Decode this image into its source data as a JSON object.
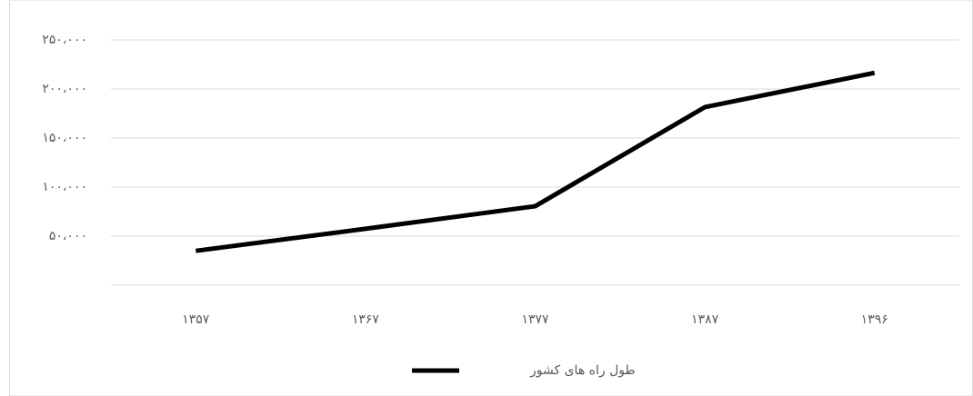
{
  "chart_data": {
    "type": "line",
    "categories": [
      "۱۳۵۷",
      "۱۳۶۷",
      "۱۳۷۷",
      "۱۳۸۷",
      "۱۳۹۶"
    ],
    "series": [
      {
        "name": "طول راه های کشور",
        "color": "#000000",
        "values": [
          35000,
          57500,
          80500,
          181500,
          216500
        ]
      }
    ],
    "ylim": [
      0,
      250000
    ],
    "yticks": [
      {
        "value": 50000,
        "label": "۵۰،۰۰۰"
      },
      {
        "value": 100000,
        "label": "۱۰۰،۰۰۰"
      },
      {
        "value": 150000,
        "label": "۱۵۰،۰۰۰"
      },
      {
        "value": 200000,
        "label": "۲۰۰،۰۰۰"
      },
      {
        "value": 250000,
        "label": "۲۵۰،۰۰۰"
      }
    ],
    "grid": true,
    "legend": "bottom"
  }
}
